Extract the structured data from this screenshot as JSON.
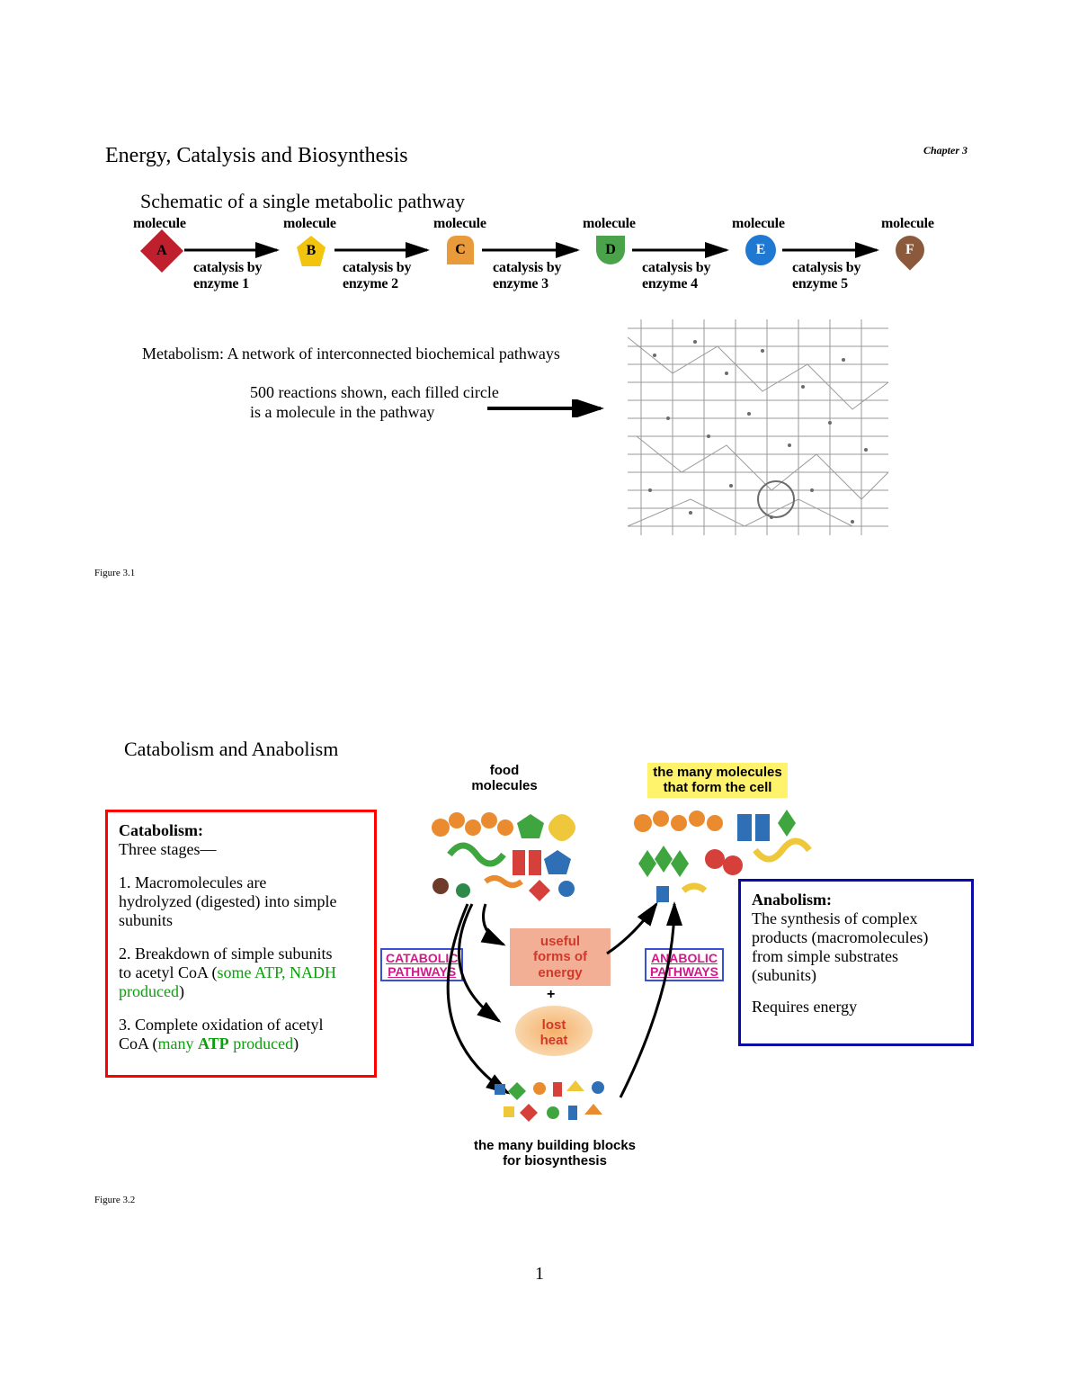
{
  "header": {
    "title": "Energy, Catalysis and Biosynthesis",
    "chapter": "Chapter 3"
  },
  "figure1": {
    "subtitle": "Schematic of a single metabolic pathway",
    "row_top": "molecule",
    "enz_prefix": "catalysis by",
    "nodes": [
      {
        "letter": "A",
        "color": "#c01f2e",
        "shape": "diamond",
        "enzyme": "enzyme 1"
      },
      {
        "letter": "B",
        "color": "#f2c40d",
        "shape": "pentagon",
        "enzyme": "enzyme 2"
      },
      {
        "letter": "C",
        "color": "#e99a3a",
        "shape": "bread",
        "enzyme": "enzyme 3"
      },
      {
        "letter": "D",
        "color": "#4aa24a",
        "shape": "shield",
        "enzyme": "enzyme 4"
      },
      {
        "letter": "E",
        "color": "#1f78d1",
        "shape": "circle",
        "enzyme": "enzyme 5"
      },
      {
        "letter": "F",
        "color": "#8b5a3c",
        "shape": "drop",
        "enzyme": null
      }
    ],
    "arrow_color": "#000000",
    "network_text": "Metabolism: A network of interconnected biochemical pathways",
    "network_sub1": "500 reactions shown, each filled circle",
    "network_sub2": "is a molecule in the pathway",
    "caption": "Figure 3.1"
  },
  "figure2": {
    "title": "Catabolism and Anabolism",
    "caption": "Figure 3.2",
    "top_left_label": "food\nmolecules",
    "top_right_label": "the many molecules\nthat form the cell",
    "top_right_bg": "#fff36b",
    "catabolic_label": "CATABOLIC\nPATHWAYS",
    "anabolic_label": "ANABOLIC\nPATHWAYS",
    "label_text_color": "#d11a8a",
    "label_border_color": "#3a4fd1",
    "energy_box": "useful\nforms of\nenergy",
    "energy_box_bg": "#f3af95",
    "plus": "+",
    "heat": "lost\nheat",
    "heat_bg": "#f5b06a",
    "bottom_label": "the many building blocks\nfor biosynthesis",
    "cata_box": {
      "border": "#ff0000",
      "heading": "Catabolism:",
      "sub": "Three stages—",
      "line1a": "1. Macromolecules are",
      "line1b": "hydrolyzed (digested) into simple",
      "line1c": "subunits",
      "line2a": "2. Breakdown of simple subunits",
      "line2b": "to acetyl CoA (",
      "line2c_green": "some ATP, NADH",
      "line2d_green": "produced",
      "line2e": ")",
      "line3a": "3. Complete oxidation of acetyl",
      "line3b": "CoA (",
      "line3c_green_pre": "many ",
      "line3c_green_bold": "ATP",
      "line3c_green_post": " produced",
      "line3d": ")"
    },
    "ana_box": {
      "border": "#0a0aa6",
      "heading": "Anabolism:",
      "line1": "The synthesis of complex",
      "line2": "products (macromolecules)",
      "line3": "from simple substrates",
      "line4": "(subunits)",
      "line5": "Requires energy"
    },
    "arrow_color": "#000000",
    "green": "#0aa00a"
  },
  "page_number": "1",
  "colors": {
    "text": "#000000",
    "bg": "#ffffff"
  }
}
